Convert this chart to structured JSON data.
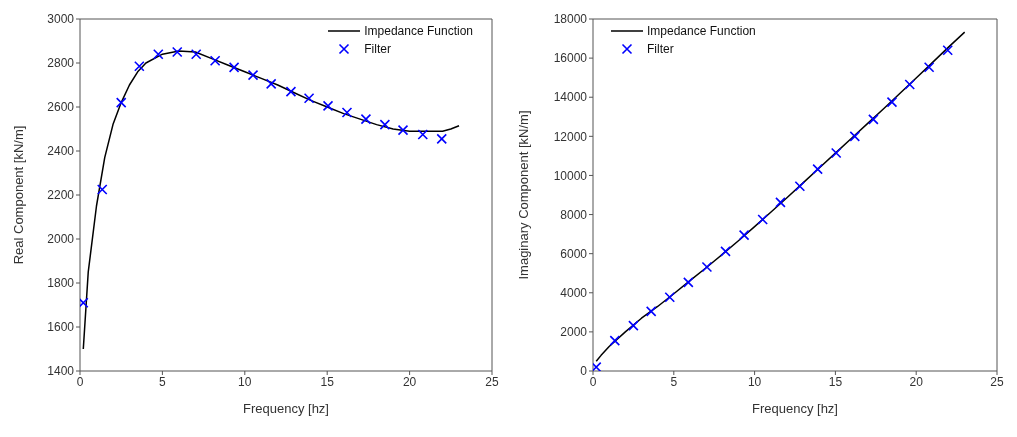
{
  "chart_data": [
    {
      "type": "line",
      "xlabel": "Frequency [hz]",
      "ylabel": "Real Component [kN/m]",
      "xlim": [
        0,
        25
      ],
      "xticks": [
        0,
        5,
        10,
        15,
        20,
        25
      ],
      "ylim": [
        1400,
        3000
      ],
      "yticks": [
        1400,
        1600,
        1800,
        2000,
        2200,
        2400,
        2600,
        2800,
        3000
      ],
      "legend": "top right",
      "series": [
        {
          "name": "Impedance Function",
          "color": "#000000",
          "line_style": "solid",
          "x": [
            0.2,
            0.5,
            1,
            1.5,
            2,
            2.5,
            3,
            3.5,
            4,
            5,
            6,
            7,
            8,
            9,
            10,
            11,
            12,
            13,
            14,
            15,
            16,
            17,
            18,
            19,
            20,
            21,
            22,
            22.5,
            23
          ],
          "values": [
            1500,
            1850,
            2150,
            2370,
            2520,
            2620,
            2700,
            2760,
            2800,
            2840,
            2855,
            2850,
            2820,
            2790,
            2760,
            2730,
            2700,
            2665,
            2630,
            2600,
            2570,
            2545,
            2520,
            2500,
            2490,
            2490,
            2490,
            2500,
            2515
          ]
        },
        {
          "name": "Filter",
          "type": "scatter",
          "color": "#0000ff",
          "marker": "cross",
          "x": [
            0.2,
            1.35,
            2.5,
            3.6,
            4.75,
            5.9,
            7.05,
            8.2,
            9.35,
            10.5,
            11.6,
            12.8,
            13.9,
            15.05,
            16.2,
            17.35,
            18.5,
            19.6,
            20.8,
            21.95
          ],
          "values": [
            1710,
            2225,
            2620,
            2785,
            2840,
            2850,
            2840,
            2810,
            2780,
            2745,
            2705,
            2670,
            2640,
            2605,
            2575,
            2545,
            2520,
            2495,
            2475,
            2455
          ]
        }
      ]
    },
    {
      "type": "line",
      "xlabel": "Frequency [hz]",
      "ylabel": "Imaginary Component [kN/m]",
      "xlim": [
        0,
        25
      ],
      "xticks": [
        0,
        5,
        10,
        15,
        20,
        25
      ],
      "ylim": [
        0,
        18000
      ],
      "yticks": [
        0,
        2000,
        4000,
        6000,
        8000,
        10000,
        12000,
        14000,
        16000,
        18000
      ],
      "legend": "top left",
      "series": [
        {
          "name": "Impedance Function",
          "color": "#000000",
          "line_style": "solid",
          "x": [
            0.2,
            0.5,
            1,
            2,
            3,
            4,
            5,
            6,
            7,
            8,
            9,
            10,
            11,
            12,
            13,
            14,
            15,
            16,
            17,
            18,
            19,
            20,
            21,
            22,
            23
          ],
          "values": [
            500,
            800,
            1250,
            2000,
            2700,
            3300,
            3950,
            4620,
            5280,
            5960,
            6660,
            7380,
            8120,
            8860,
            9620,
            10380,
            11140,
            11900,
            12660,
            13420,
            14200,
            14980,
            15770,
            16560,
            17330
          ]
        },
        {
          "name": "Filter",
          "type": "scatter",
          "color": "#0000ff",
          "marker": "cross",
          "x": [
            0.2,
            1.35,
            2.5,
            3.6,
            4.75,
            5.9,
            7.05,
            8.2,
            9.35,
            10.5,
            11.6,
            12.8,
            13.9,
            15.05,
            16.2,
            17.35,
            18.5,
            19.6,
            20.8,
            21.95
          ],
          "values": [
            200,
            1550,
            2320,
            3050,
            3770,
            4530,
            5320,
            6120,
            6950,
            7750,
            8620,
            9450,
            10320,
            11150,
            12000,
            12870,
            13750,
            14650,
            15530,
            16400
          ]
        }
      ]
    }
  ]
}
